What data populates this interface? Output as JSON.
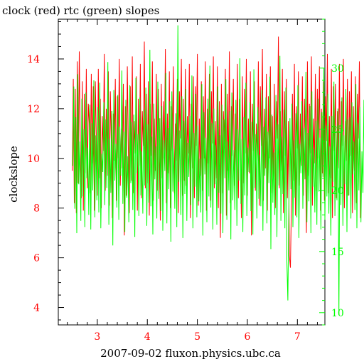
{
  "chart_data": {
    "type": "line",
    "title": "clock (red) rtc (green) slopes",
    "xlabel": "2007-09-02 fluxon.physics.ubc.ca",
    "ylabel": "clockslope",
    "xlim": [
      2.22,
      7.55
    ],
    "ylim_left": [
      3.3,
      15.6
    ],
    "ylim_right": [
      9.0,
      34.0
    ],
    "x_ticks": [
      "3",
      "4",
      "5",
      "6",
      "7"
    ],
    "y_left_ticks": [
      "4",
      "6",
      "8",
      "10",
      "12",
      "14"
    ],
    "y_right_ticks": [
      "10",
      "15",
      "20",
      "25",
      "30"
    ],
    "series": [
      {
        "name": "clock",
        "axis": "left",
        "color": "#ff0000",
        "x_start": 2.5,
        "x_step": 0.02,
        "values": [
          9.5,
          13.2,
          8.2,
          12.8,
          7.8,
          13.9,
          9.0,
          14.3,
          10.2,
          8.4,
          13.1,
          7.9,
          12.6,
          9.4,
          13.6,
          8.8,
          12.2,
          11.4,
          8.6,
          13.4,
          9.8,
          12.9,
          7.9,
          13.1,
          10.8,
          8.5,
          13.6,
          9.2,
          12.4,
          8.0,
          11.7,
          10.3,
          14.2,
          8.7,
          12.0,
          9.3,
          13.5,
          8.1,
          12.7,
          10.6,
          7.6,
          11.8,
          9.9,
          13.2,
          8.3,
          12.5,
          10.0,
          14.0,
          8.9,
          11.2,
          9.6,
          13.0,
          6.9,
          12.1,
          8.5,
          13.7,
          10.4,
          7.8,
          12.9,
          9.1,
          14.1,
          8.6,
          11.5,
          10.2,
          13.3,
          7.9,
          12.4,
          9.7,
          13.8,
          8.4,
          11.9,
          10.5,
          14.7,
          8.8,
          12.6,
          9.0,
          13.1,
          7.7,
          12.2,
          10.1,
          13.9,
          8.3,
          11.6,
          9.5,
          13.4,
          8.7,
          12.8,
          10.7,
          7.5,
          13.0,
          9.2,
          12.3,
          10.0,
          14.4,
          8.2,
          11.8,
          9.4,
          13.5,
          8.0,
          12.1,
          10.3,
          13.7,
          8.6,
          11.4,
          9.9,
          13.2,
          7.8,
          12.7,
          10.8,
          14.0,
          8.5,
          12.4,
          9.1,
          13.6,
          8.9,
          11.7,
          10.2,
          13.8,
          7.6,
          12.2,
          9.6,
          13.3,
          8.4,
          12.9,
          10.5,
          14.2,
          8.1,
          11.6,
          9.3,
          13.1,
          8.7,
          12.5,
          10.0,
          13.9,
          7.9,
          12.0,
          9.8,
          13.4,
          8.3,
          12.7,
          10.6,
          14.1,
          8.8,
          11.5,
          9.2,
          13.7,
          8.0,
          12.3,
          6.8,
          13.0,
          8.6,
          11.9,
          10.4,
          13.6,
          7.7,
          12.6,
          9.5,
          14.3,
          8.2,
          12.1,
          10.1,
          13.2,
          8.9,
          11.8,
          9.7,
          13.8,
          8.4,
          12.4,
          10.7,
          7.6,
          13.3,
          9.0,
          12.8,
          10.2,
          14.0,
          8.5,
          11.6,
          9.4,
          13.5,
          6.9,
          12.2,
          10.3,
          13.1,
          8.7,
          11.4,
          9.9,
          13.9,
          8.1,
          12.9,
          10.5,
          14.4,
          8.3,
          12.0,
          9.6,
          13.4,
          7.9,
          12.5,
          10.0,
          13.7,
          8.6,
          11.7,
          9.2,
          13.0,
          8.0,
          12.3,
          10.8,
          14.9,
          8.8,
          11.9,
          9.5,
          13.6,
          7.8,
          12.7,
          10.1,
          13.2,
          8.4,
          11.5,
          6.1,
          5.6,
          8.2,
          12.6,
          9.1,
          13.8,
          7.7,
          12.1,
          10.4,
          13.5,
          8.9,
          11.8,
          9.7,
          13.3,
          8.5,
          12.4,
          10.6,
          7.0,
          13.9,
          9.3,
          12.2,
          10.2,
          14.1,
          8.1,
          11.6,
          9.8,
          13.4,
          8.7,
          12.8,
          10.0,
          13.7,
          7.9,
          12.0,
          9.4,
          13.1,
          8.3,
          12.5,
          10.7,
          14.2,
          8.6,
          11.7,
          9.2,
          13.6,
          7.6,
          12.9,
          10.3,
          13.0,
          8.4,
          11.9,
          9.6,
          13.8,
          8.8,
          12.3,
          10.5,
          14.0,
          8.0,
          11.5,
          9.9,
          13.2,
          8.5,
          12.7,
          10.1,
          13.5,
          7.8,
          12.1,
          9.5,
          13.3,
          8.2,
          12.6,
          10.8,
          13.9,
          7.6
        ]
      },
      {
        "name": "rtc",
        "axis": "right",
        "color": "#00ff00",
        "x_start": 2.51,
        "x_step": 0.02,
        "values": [
          22.0,
          28.5,
          18.5,
          26.0,
          16.5,
          29.5,
          20.5,
          24.0,
          17.5,
          27.5,
          19.5,
          25.0,
          17.0,
          28.0,
          21.0,
          23.5,
          18.0,
          27.0,
          16.8,
          25.5,
          20.0,
          29.0,
          17.8,
          24.5,
          19.2,
          26.8,
          18.2,
          28.8,
          16.9,
          23.0,
          21.5,
          27.2,
          18.8,
          25.8,
          20.2,
          30.5,
          17.2,
          24.2,
          19.8,
          26.5,
          15.5,
          28.2,
          20.8,
          23.8,
          18.6,
          27.8,
          17.6,
          25.2,
          21.2,
          29.8,
          18.9,
          24.8,
          16.6,
          27.4,
          19.4,
          22.8,
          17.4,
          28.6,
          20.6,
          25.6,
          18.4,
          26.2,
          16.2,
          29.2,
          21.4,
          24.6,
          17.9,
          27.6,
          19.6,
          23.2,
          18.1,
          26.6,
          20.4,
          28.4,
          17.1,
          25.4,
          19.0,
          31.5,
          18.7,
          24.4,
          16.4,
          27.1,
          20.9,
          23.6,
          17.7,
          28.9,
          19.3,
          25.9,
          18.3,
          26.9,
          16.7,
          24.1,
          21.6,
          29.6,
          17.3,
          25.1,
          20.1,
          27.3,
          15.8,
          28.1,
          19.9,
          23.4,
          18.5,
          26.3,
          17.0,
          33.5,
          20.7,
          24.9,
          18.0,
          27.7,
          16.1,
          25.7,
          19.7,
          28.3,
          17.5,
          23.9,
          21.1,
          26.1,
          18.8,
          29.4,
          16.9,
          24.7,
          20.3,
          27.9,
          17.8,
          25.3,
          19.1,
          22.6,
          18.2,
          28.7,
          16.3,
          26.4,
          21.3,
          24.3,
          17.4,
          27.5,
          19.5,
          30.2,
          18.6,
          25.5,
          16.8,
          26.7,
          20.5,
          23.7,
          17.2,
          28.5,
          19.8,
          24.5,
          18.1,
          27.0,
          16.5,
          25.8,
          21.0,
          29.1,
          17.6,
          24.0,
          20.0,
          26.5,
          16.0,
          28.0,
          19.2,
          23.3,
          18.4,
          27.4,
          17.1,
          25.0,
          20.8,
          30.8,
          18.9,
          24.2,
          16.6,
          26.0,
          19.6,
          28.8,
          17.9,
          23.5,
          21.5,
          27.2,
          18.3,
          25.6,
          16.4,
          29.9,
          20.2,
          24.6,
          17.7,
          26.8,
          19.3,
          22.9,
          18.7,
          28.2,
          16.7,
          25.2,
          21.2,
          27.6,
          17.3,
          24.8,
          20.6,
          29.3,
          15.2,
          26.2,
          19.0,
          23.1,
          18.0,
          27.8,
          16.2,
          25.4,
          20.4,
          31.0,
          17.5,
          24.4,
          19.7,
          26.6,
          16.9,
          28.4,
          14.2,
          11.0,
          18.6,
          25.9,
          20.1,
          27.1,
          17.0,
          24.1,
          19.4,
          26.3,
          17.8,
          28.6,
          16.1,
          23.8,
          21.4,
          27.3,
          18.5,
          25.1,
          20.9,
          29.7,
          17.4,
          24.7,
          19.1,
          26.9,
          16.5,
          28.1,
          20.3,
          23.4,
          18.2,
          25.7,
          17.2,
          27.5,
          19.9,
          24.3,
          16.8,
          26.4,
          21.1,
          30.0,
          17.6,
          25.3,
          19.5,
          27.9,
          18.1,
          23.6,
          16.3,
          26.1,
          20.7,
          28.9,
          17.9,
          24.9,
          19.2,
          26.7,
          9.8,
          25.0,
          18.8,
          27.6,
          17.1,
          24.5,
          20.5,
          28.3,
          16.6,
          25.8,
          19.6,
          26.0,
          17.7,
          27.2,
          21.3,
          24.0,
          18.4,
          28.7,
          16.9,
          25.5,
          20.0,
          26.8,
          17.4,
          23.2,
          19.8,
          27.4,
          18.6,
          25.2,
          16.4,
          28.5,
          20.8,
          24.4,
          17.8,
          26.5
        ]
      }
    ]
  }
}
